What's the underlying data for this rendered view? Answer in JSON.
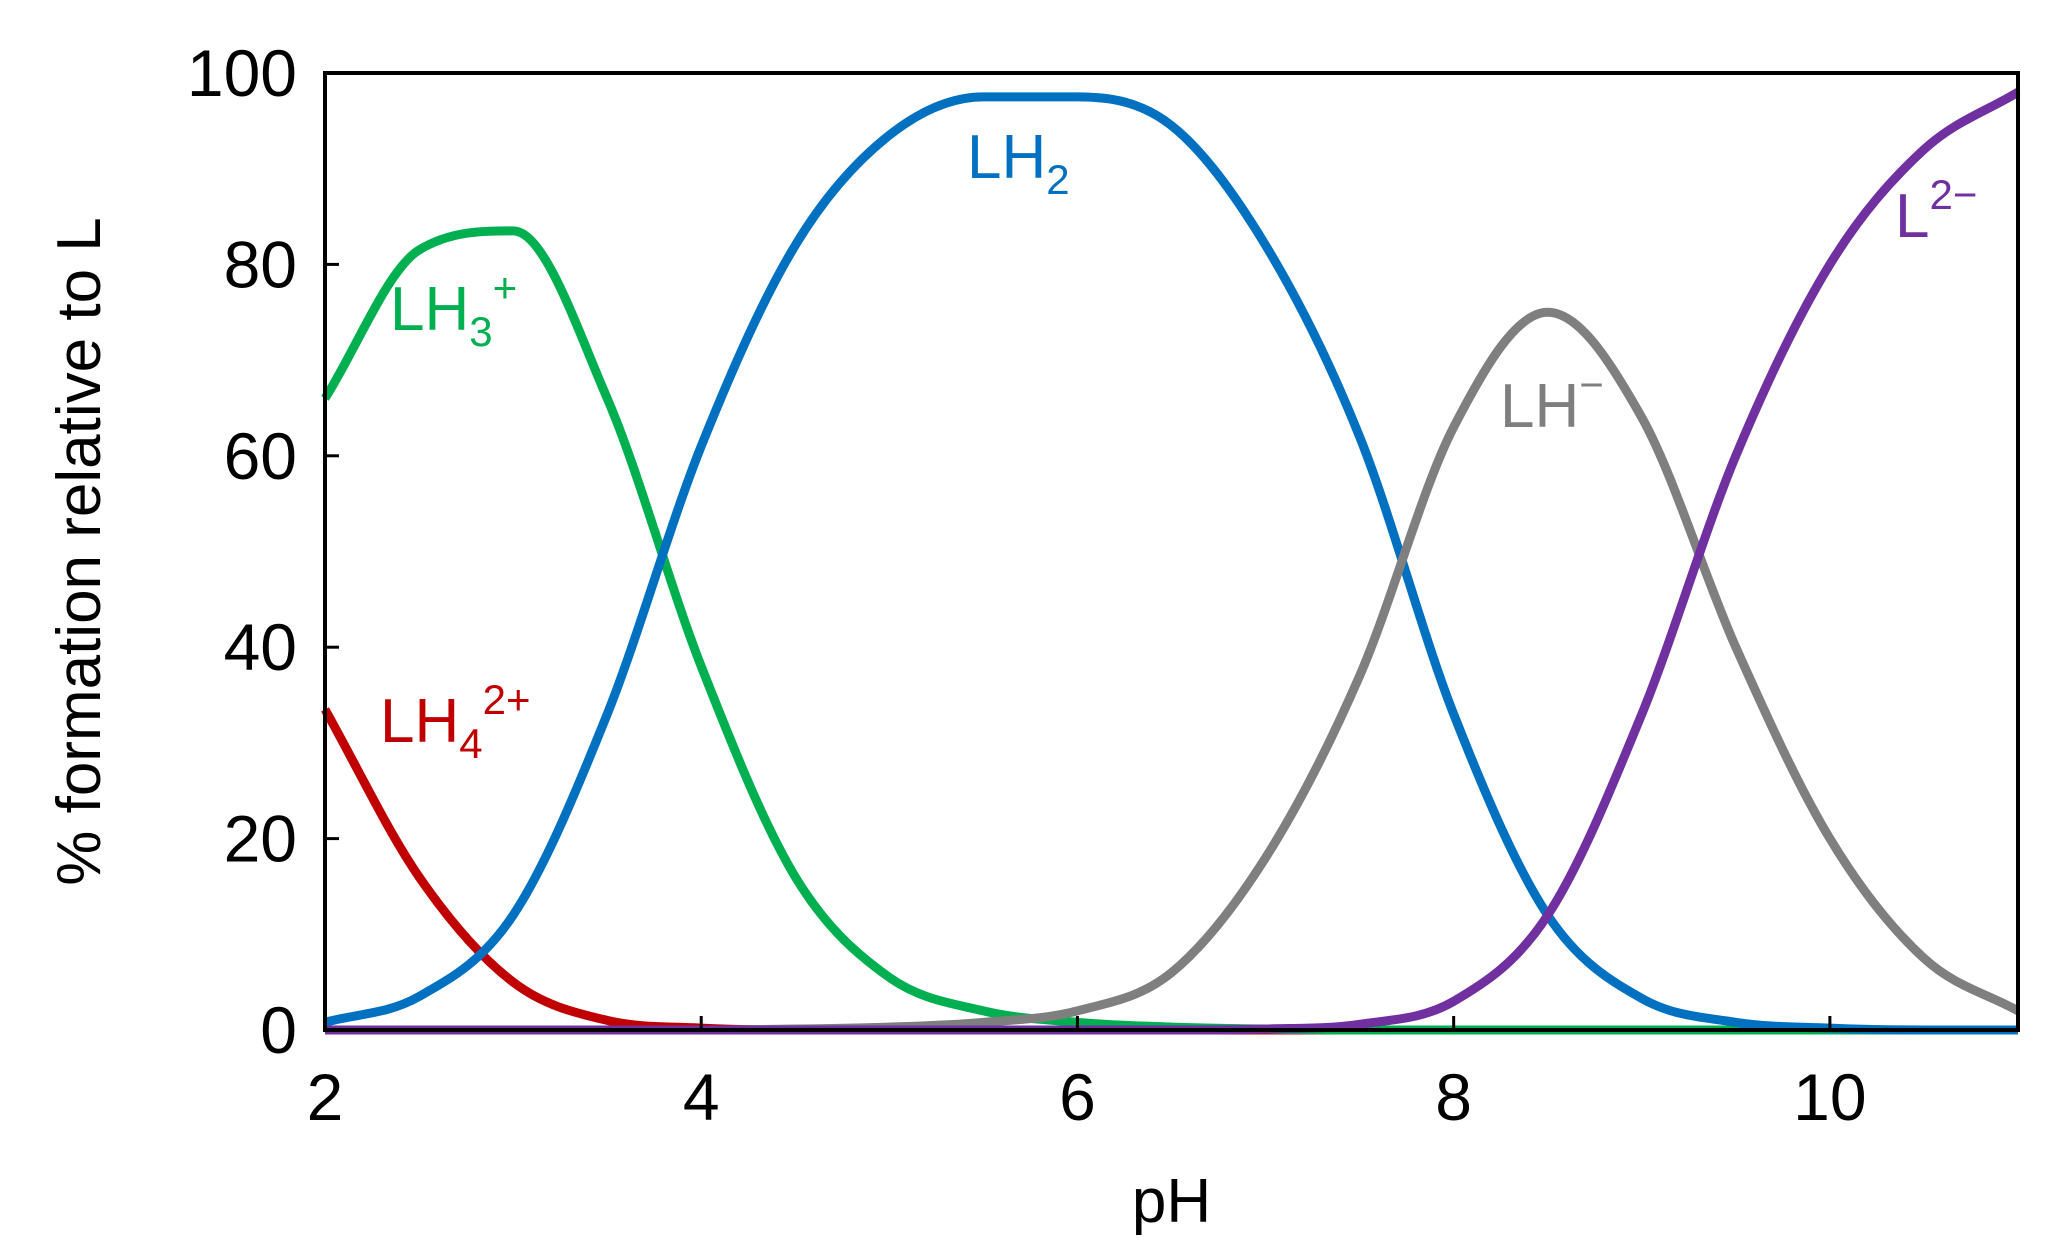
{
  "chart_data": {
    "type": "line",
    "xlabel": "pH",
    "ylabel": "% formation relative to L",
    "xlim": [
      2,
      11
    ],
    "ylim": [
      0,
      100
    ],
    "x_ticks": [
      "2",
      "4",
      "6",
      "8",
      "10"
    ],
    "y_ticks": [
      "0",
      "20",
      "40",
      "60",
      "80",
      "100"
    ],
    "grid": false,
    "legend": "none (series labeled inline)",
    "x": [
      2.0,
      2.5,
      3.0,
      3.5,
      4.0,
      4.5,
      5.0,
      5.5,
      6.0,
      6.5,
      7.0,
      7.5,
      8.0,
      8.5,
      9.0,
      9.5,
      10.0,
      10.5,
      11.0
    ],
    "series": [
      {
        "name": "LH4 2+",
        "label": {
          "base": "LH",
          "sub": "4",
          "sup": "2+"
        },
        "color": "#c00000",
        "values": [
          33.5,
          16.0,
          5.0,
          1.0,
          0.2,
          0.0,
          0.0,
          0.0,
          0.0,
          0.0,
          0.0,
          0.0,
          0.0,
          0.0,
          0.0,
          0.0,
          0.0,
          0.0,
          0.0
        ]
      },
      {
        "name": "LH3 +",
        "label": {
          "base": "LH",
          "sub": "3",
          "sup": "+"
        },
        "color": "#00b050",
        "values": [
          66.0,
          81.5,
          83.5,
          66.0,
          38.0,
          16.0,
          5.5,
          2.0,
          0.8,
          0.3,
          0.1,
          0.0,
          0.0,
          0.0,
          0.0,
          0.0,
          0.0,
          0.0,
          0.0
        ]
      },
      {
        "name": "LH2",
        "label": {
          "base": "LH",
          "sub": "2",
          "sup": ""
        },
        "color": "#0070c0",
        "values": [
          0.8,
          3.5,
          12.0,
          33.0,
          61.0,
          82.0,
          93.5,
          97.5,
          97.5,
          94.5,
          82.0,
          62.0,
          33.0,
          12.0,
          3.3,
          0.8,
          0.2,
          0.0,
          0.0
        ]
      },
      {
        "name": "LH−",
        "label": {
          "base": "LH",
          "sub": "",
          "sup": "−"
        },
        "color": "#7f7f7f",
        "values": [
          0.0,
          0.0,
          0.0,
          0.0,
          0.0,
          0.1,
          0.3,
          0.8,
          2.0,
          6.0,
          18.0,
          37.0,
          63.0,
          75.0,
          64.0,
          40.0,
          20.0,
          7.5,
          2.0
        ]
      },
      {
        "name": "L2−",
        "label": {
          "base": "L",
          "sub": "",
          "sup": "2−"
        },
        "color": "#7030a0",
        "values": [
          0.0,
          0.0,
          0.0,
          0.0,
          0.0,
          0.0,
          0.0,
          0.0,
          0.0,
          0.0,
          0.1,
          0.6,
          3.0,
          12.0,
          33.0,
          60.0,
          80.0,
          92.0,
          98.0
        ]
      }
    ]
  }
}
